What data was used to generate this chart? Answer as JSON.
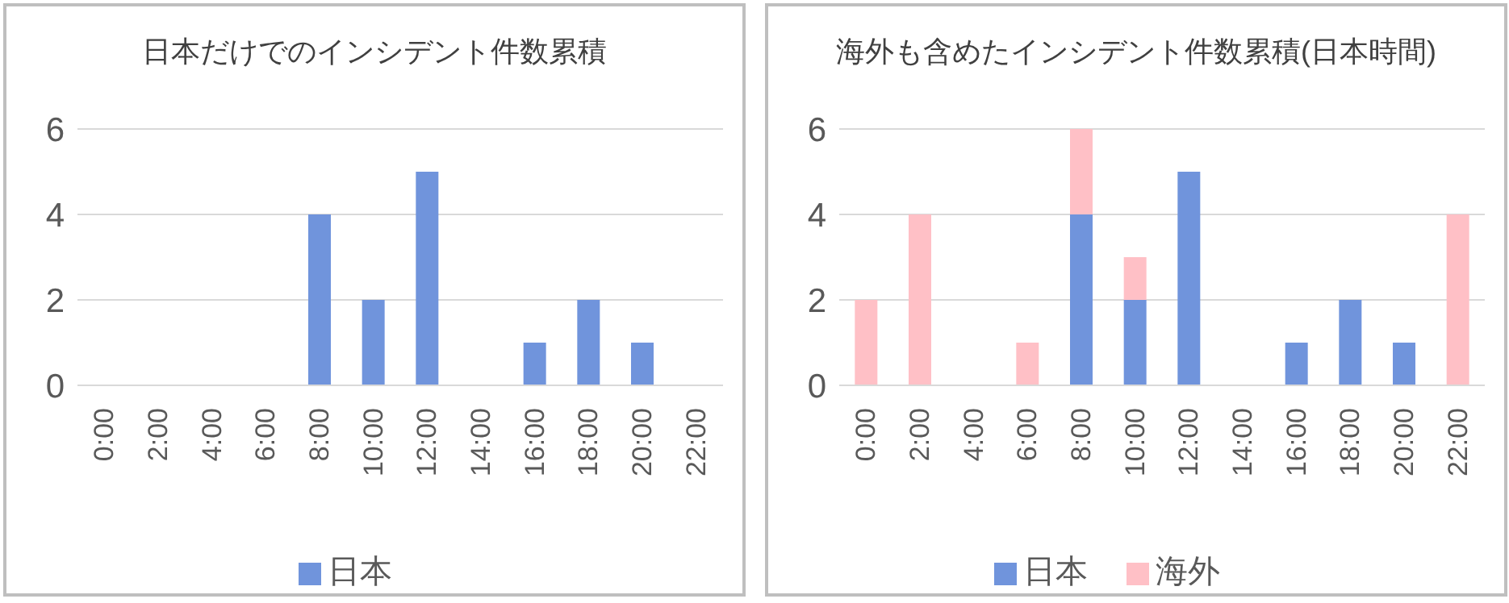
{
  "chart_data": [
    {
      "type": "bar",
      "title": "日本だけでのインシデント件数累積",
      "categories": [
        "0:00",
        "2:00",
        "4:00",
        "6:00",
        "8:00",
        "10:00",
        "12:00",
        "14:00",
        "16:00",
        "18:00",
        "20:00",
        "22:00"
      ],
      "series": [
        {
          "name": "日本",
          "color": "#7094dc",
          "values": [
            0,
            0,
            0,
            0,
            4,
            2,
            5,
            0,
            1,
            2,
            1,
            0
          ]
        }
      ],
      "ylim": [
        0,
        6
      ],
      "yticks": [
        0,
        2,
        4,
        6
      ],
      "grid": "y",
      "legend": "bottom"
    },
    {
      "type": "bar",
      "title": "海外も含めたインシデント件数累積(日本時間)",
      "stacked": true,
      "categories": [
        "0:00",
        "2:00",
        "4:00",
        "6:00",
        "8:00",
        "10:00",
        "12:00",
        "14:00",
        "16:00",
        "18:00",
        "20:00",
        "22:00"
      ],
      "series": [
        {
          "name": "日本",
          "color": "#7094dc",
          "values": [
            0,
            0,
            0,
            0,
            4,
            2,
            5,
            0,
            1,
            2,
            1,
            0
          ]
        },
        {
          "name": "海外",
          "color": "#ffc0c6",
          "values": [
            2,
            4,
            0,
            1,
            2,
            1,
            0,
            0,
            0,
            0,
            0,
            4
          ]
        }
      ],
      "ylim": [
        0,
        6
      ],
      "yticks": [
        0,
        2,
        4,
        6
      ],
      "grid": "y",
      "legend": "bottom"
    }
  ]
}
